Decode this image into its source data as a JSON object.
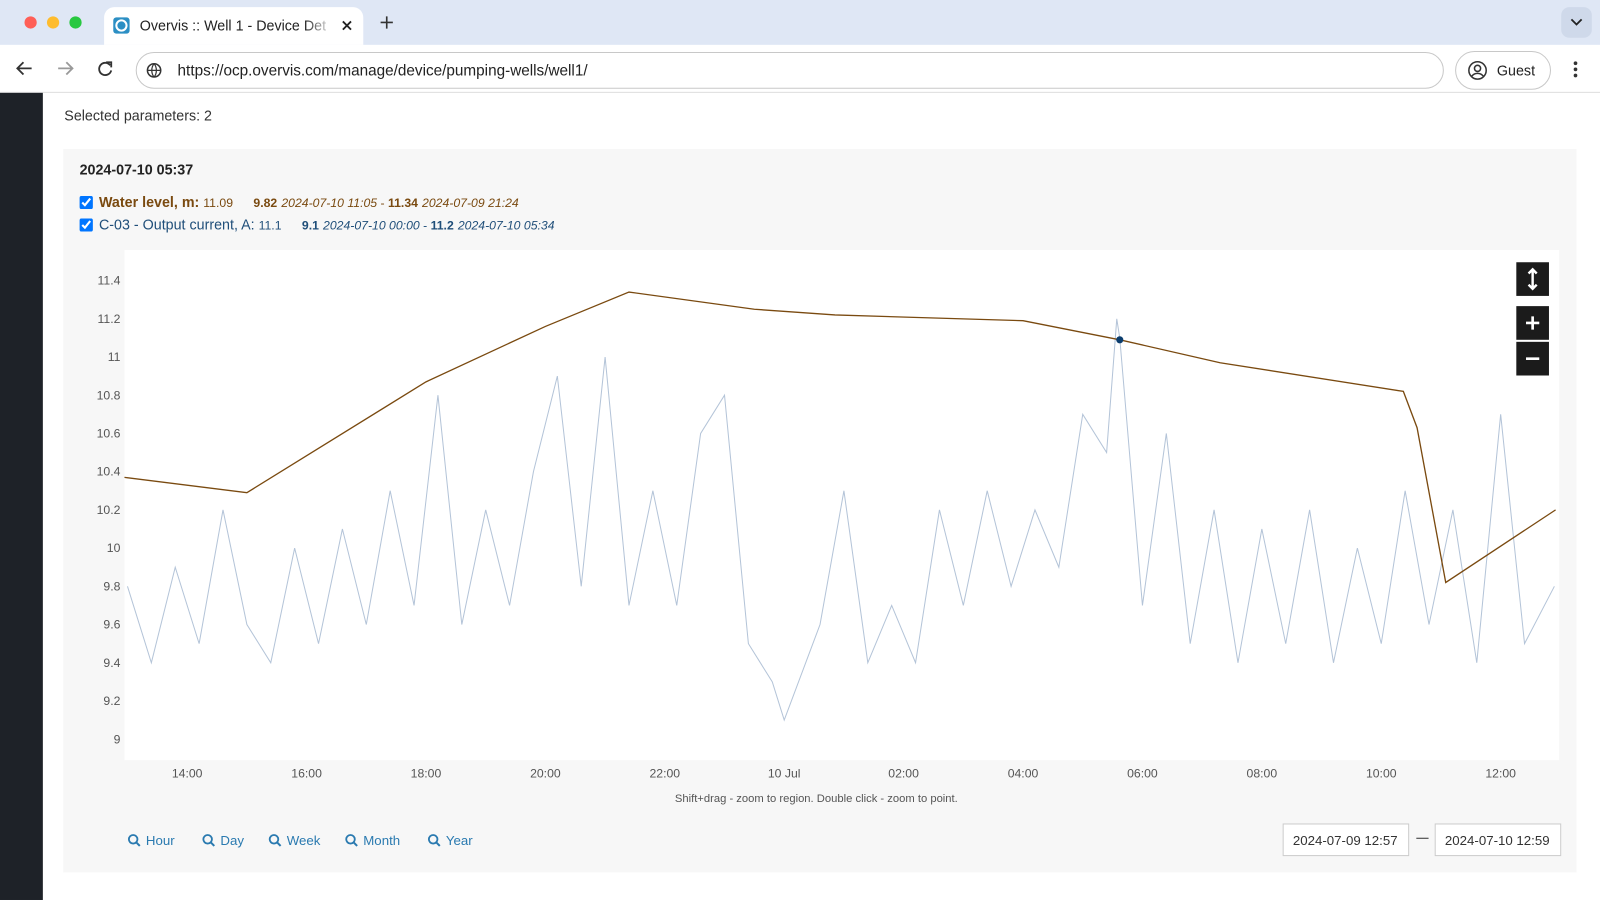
{
  "browser": {
    "tab_title": "Overvis :: Well 1 - Device Det",
    "url": "https://ocp.overvis.com/manage/device/pumping-wells/well1/",
    "profile": "Guest"
  },
  "page": {
    "selected_parameters": "Selected parameters: 2",
    "hint": "Shift+drag - zoom to region. Double click - zoom to point.",
    "range_buttons": [
      "Hour",
      "Day",
      "Week",
      "Month",
      "Year"
    ],
    "date_from": "2024-07-09 12:57",
    "date_to": "2024-07-10 12:59"
  },
  "chart_data": {
    "type": "line",
    "title": "2024-07-10 05:37",
    "xlim": [
      12.95,
      36.98
    ],
    "xticks": [
      {
        "value": 14,
        "label": "14:00"
      },
      {
        "value": 16,
        "label": "16:00"
      },
      {
        "value": 18,
        "label": "18:00"
      },
      {
        "value": 20,
        "label": "20:00"
      },
      {
        "value": 22,
        "label": "22:00"
      },
      {
        "value": 24,
        "label": "10 Jul"
      },
      {
        "value": 26,
        "label": "02:00"
      },
      {
        "value": 28,
        "label": "04:00"
      },
      {
        "value": 30,
        "label": "06:00"
      },
      {
        "value": 32,
        "label": "08:00"
      },
      {
        "value": 34,
        "label": "10:00"
      },
      {
        "value": 36,
        "label": "12:00"
      }
    ],
    "ylim": [
      8.89,
      11.56
    ],
    "yticks": [
      9,
      9.2,
      9.4,
      9.6,
      9.8,
      10,
      10.2,
      10.4,
      10.6,
      10.8,
      11,
      11.2,
      11.4
    ],
    "grid": false,
    "series": [
      {
        "name": "Water level, m",
        "color": "#7a4a10",
        "legend_color": "#7a4a10",
        "current_value": 11.09,
        "min": 9.82,
        "min_time": "2024-07-10 11:05",
        "max": 11.34,
        "max_time": "2024-07-09 21:24",
        "x": [
          12.95,
          15.0,
          18.0,
          20.0,
          21.4,
          23.5,
          24.85,
          28.0,
          29.62,
          31.3,
          34.37,
          34.6,
          35.08,
          36.92
        ],
        "values": [
          10.37,
          10.29,
          10.87,
          11.16,
          11.34,
          11.25,
          11.22,
          11.19,
          11.09,
          10.97,
          10.82,
          10.63,
          9.82,
          10.2
        ]
      },
      {
        "name": "C-03 - Output current, A",
        "color": "#b4c4d8",
        "legend_color": "#1f4e79",
        "current_value": 11.1,
        "min": 9.1,
        "min_time": "2024-07-10 00:00",
        "max": 11.2,
        "max_time": "2024-07-10 05:34",
        "x": [
          13.0,
          13.4,
          13.8,
          14.2,
          14.6,
          15.0,
          15.4,
          15.8,
          16.2,
          16.6,
          17.0,
          17.4,
          17.8,
          18.2,
          18.6,
          19.0,
          19.4,
          19.8,
          20.2,
          20.6,
          21.0,
          21.4,
          21.8,
          22.2,
          22.6,
          23.0,
          23.4,
          23.8,
          24.0,
          24.6,
          25.0,
          25.4,
          25.8,
          26.2,
          26.6,
          27.0,
          27.4,
          27.8,
          28.2,
          28.6,
          29.0,
          29.4,
          29.57,
          29.62,
          30.0,
          30.4,
          30.8,
          31.2,
          31.6,
          32.0,
          32.4,
          32.8,
          33.2,
          33.6,
          34.0,
          34.4,
          34.8,
          35.2,
          35.6,
          36.0,
          36.4,
          36.9
        ],
        "values": [
          9.8,
          9.4,
          9.9,
          9.5,
          10.2,
          9.6,
          9.4,
          10.0,
          9.5,
          10.1,
          9.6,
          10.3,
          9.7,
          10.8,
          9.6,
          10.2,
          9.7,
          10.4,
          10.9,
          9.8,
          11.0,
          9.7,
          10.3,
          9.7,
          10.6,
          10.8,
          9.5,
          9.3,
          9.1,
          9.6,
          10.3,
          9.4,
          9.7,
          9.4,
          10.2,
          9.7,
          10.3,
          9.8,
          10.2,
          9.9,
          10.7,
          10.5,
          11.2,
          11.1,
          9.7,
          10.6,
          9.5,
          10.2,
          9.4,
          10.1,
          9.5,
          10.2,
          9.4,
          10.0,
          9.5,
          10.3,
          9.6,
          10.2,
          9.4,
          10.7,
          9.5,
          9.8
        ]
      }
    ]
  }
}
